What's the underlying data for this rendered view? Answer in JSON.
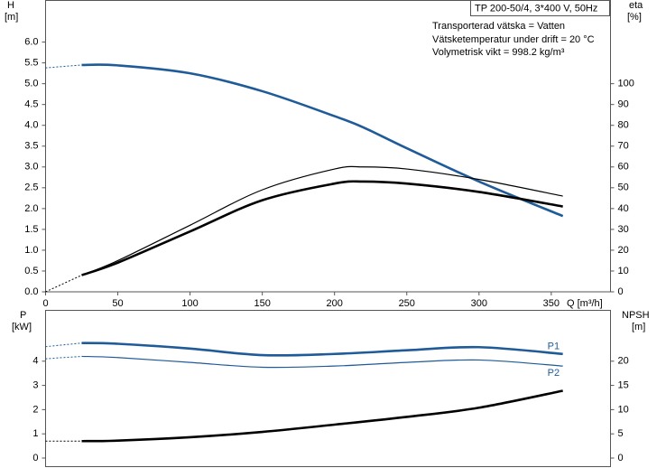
{
  "chart_data": [
    {
      "type": "line",
      "title": "TP 200-50/4, 3*400 V, 50Hz",
      "annotations": [
        "Transporterad vätska = Vatten",
        "Vätsketemperatur under drift = 20 °C",
        "Volymetrisk vikt = 998.2 kg/m³"
      ],
      "ylabel": "H",
      "yunit": "[m]",
      "y2label": "eta",
      "y2unit": "[%]",
      "xlabel": "Q [m³/h]",
      "x": [
        0,
        25,
        50,
        100,
        150,
        200,
        220,
        250,
        300,
        358
      ],
      "xlim": [
        0,
        391
      ],
      "xticks": [
        0,
        50,
        100,
        150,
        200,
        250,
        300,
        350
      ],
      "ylim": [
        0,
        7
      ],
      "yticks": [
        {
          "value": 0,
          "label": "0.0"
        },
        0.5,
        {
          "value": 1,
          "label": "1.0"
        },
        1.5,
        {
          "value": 2,
          "label": "2.0"
        },
        2.5,
        {
          "value": 3,
          "label": "3.0"
        },
        3.5,
        {
          "value": 4,
          "label": "4.0"
        },
        4.5,
        {
          "value": 5,
          "label": "5.0"
        },
        5.5,
        {
          "value": 6,
          "label": "6.0"
        }
      ],
      "y2lim": [
        0,
        140
      ],
      "y2ticks": [
        0,
        10,
        20,
        30,
        40,
        50,
        60,
        70,
        80,
        90,
        100
      ],
      "series": [
        {
          "color": "#1f5b98",
          "style": "bold",
          "values": [
            null,
            5.45,
            5.44,
            5.25,
            4.82,
            4.22,
            3.95,
            3.45,
            2.65,
            1.82
          ]
        },
        {
          "color": "#1f5b98",
          "style": "dotted",
          "values": [
            5.38,
            5.45,
            null,
            null,
            null,
            null,
            null,
            null,
            null,
            null
          ]
        },
        {
          "color": "#000000",
          "style": "thin",
          "axis": "y2",
          "values": [
            null,
            8,
            15,
            32,
            49,
            59,
            60,
            59,
            54,
            46
          ]
        },
        {
          "color": "#000000",
          "style": "bold",
          "axis": "y2",
          "values": [
            null,
            8,
            14,
            29,
            44,
            52,
            53,
            52,
            48,
            41
          ]
        },
        {
          "color": "#000000",
          "style": "dotted",
          "axis": "y2",
          "values": [
            0,
            8,
            null,
            null,
            null,
            null,
            null,
            null,
            null,
            null
          ]
        }
      ]
    },
    {
      "type": "line",
      "ylabel": "P",
      "yunit": "[kW]",
      "y2label": "NPSH",
      "y2unit": "[m]",
      "x": [
        0,
        25,
        50,
        100,
        150,
        200,
        250,
        300,
        358
      ],
      "xlim": [
        0,
        391
      ],
      "ylim": [
        0,
        6.1
      ],
      "yticks": [
        0,
        1,
        2,
        3,
        4
      ],
      "y2lim": [
        0,
        30.5
      ],
      "y2ticks": [
        0,
        5,
        10,
        15,
        20
      ],
      "series": [
        {
          "name": "P1",
          "color": "#1f5b98",
          "style": "bold",
          "values": [
            null,
            4.75,
            4.72,
            4.52,
            4.25,
            4.3,
            4.45,
            4.58,
            4.3
          ]
        },
        {
          "name": "P2",
          "color": "#1f5b98",
          "style": "thin",
          "values": [
            null,
            4.2,
            4.15,
            3.95,
            3.75,
            3.8,
            3.95,
            4.05,
            3.8
          ]
        },
        {
          "color": "#1f5b98",
          "style": "dotted",
          "values": [
            4.6,
            4.75,
            null,
            null,
            null,
            null,
            null,
            null,
            null
          ]
        },
        {
          "color": "#1f5b98",
          "style": "dotted",
          "values": [
            4.1,
            4.2,
            null,
            null,
            null,
            null,
            null,
            null,
            null
          ]
        },
        {
          "color": "#000000",
          "style": "bold",
          "axis": "y2",
          "values": [
            null,
            3.5,
            3.6,
            4.3,
            5.4,
            6.9,
            8.5,
            10.4,
            13.9
          ]
        },
        {
          "color": "#000000",
          "style": "dotted",
          "axis": "y2",
          "values": [
            3.5,
            3.5,
            null,
            null,
            null,
            null,
            null,
            null,
            null
          ]
        }
      ]
    }
  ]
}
